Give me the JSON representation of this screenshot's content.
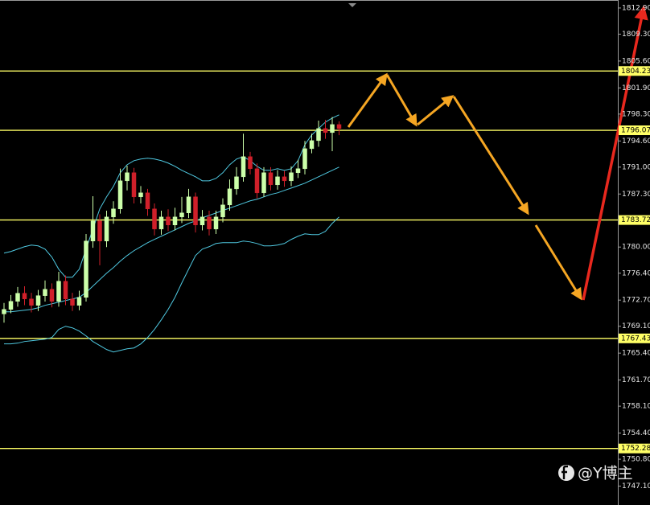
{
  "chart_data": {
    "type": "candlestick",
    "ylim": [
      1744.5,
      1814.0
    ],
    "yticks": [
      {
        "value": 1812.9,
        "label": "1812.90"
      },
      {
        "value": 1809.3,
        "label": "1809.30"
      },
      {
        "value": 1805.6,
        "label": "1805.60"
      },
      {
        "value": 1801.9,
        "label": "1801.90"
      },
      {
        "value": 1798.3,
        "label": "1798.30"
      },
      {
        "value": 1794.6,
        "label": "1794.60"
      },
      {
        "value": 1791,
        "label": "1791.00"
      },
      {
        "value": 1787.3,
        "label": "1787.30"
      },
      {
        "value": 1780,
        "label": "1780.00"
      },
      {
        "value": 1776.4,
        "label": "1776.40"
      },
      {
        "value": 1772.7,
        "label": "1772.70"
      },
      {
        "value": 1769.1,
        "label": "1769.10"
      },
      {
        "value": 1765.4,
        "label": "1765.40"
      },
      {
        "value": 1761.7,
        "label": "1761.70"
      },
      {
        "value": 1758.1,
        "label": "1758.10"
      },
      {
        "value": 1754.4,
        "label": "1754.40"
      },
      {
        "value": 1750.8,
        "label": "1750.80"
      },
      {
        "value": 1747.1,
        "label": "1747.10"
      }
    ],
    "levels": [
      1804.23,
      1796.07,
      1783.72,
      1767.43,
      1752.28
    ],
    "level_color": "#ffff66",
    "up_color": "#ccffaa",
    "down_color": "#d0202a",
    "open": [
      1770.8,
      1771.42,
      1772.53,
      1773.64,
      1772.86,
      1771.98,
      1773.31,
      1774.19,
      1772.53,
      1775.3,
      1772.86,
      1771.98,
      1773.08,
      1780.83,
      1783.59,
      1780.83,
      1784.14,
      1785.25,
      1789.12,
      1790.23,
      1786.91,
      1787.46,
      1785.25,
      1782.48,
      1784.14,
      1783.04,
      1784.14,
      1784.7,
      1786.91,
      1783.04,
      1784.14,
      1782.48,
      1784.14,
      1785.8,
      1788.01,
      1789.67,
      1792.44,
      1790.78,
      1787.46,
      1790.23,
      1788.57,
      1789.67,
      1789.12,
      1790.23,
      1790.78,
      1793.54,
      1794.65,
      1796.31,
      1795.76,
      1796.86
    ],
    "high": [
      1772.3,
      1773.4,
      1774.5,
      1774.6,
      1773.7,
      1774.1,
      1775.4,
      1775.0,
      1776.6,
      1776.1,
      1773.7,
      1774.0,
      1781.8,
      1787.0,
      1784.5,
      1785.0,
      1786.3,
      1790.8,
      1791.2,
      1790.9,
      1788.4,
      1788.0,
      1786.0,
      1785.0,
      1785.2,
      1785.4,
      1786.9,
      1788.0,
      1787.5,
      1785.1,
      1785.0,
      1785.0,
      1786.7,
      1789.3,
      1791.0,
      1795.6,
      1793.1,
      1791.5,
      1791.0,
      1791.0,
      1790.6,
      1790.5,
      1791.1,
      1792.0,
      1794.6,
      1795.6,
      1797.4,
      1797.5,
      1797.9,
      1797.3
    ],
    "low": [
      1769.6,
      1770.9,
      1771.8,
      1772.0,
      1771.0,
      1771.2,
      1772.5,
      1771.7,
      1771.8,
      1772.0,
      1771.2,
      1771.3,
      1772.5,
      1779.9,
      1777.5,
      1780.0,
      1783.2,
      1784.6,
      1787.8,
      1786.0,
      1786.0,
      1784.3,
      1781.6,
      1781.7,
      1782.2,
      1782.3,
      1783.3,
      1784.0,
      1782.0,
      1782.3,
      1781.6,
      1781.8,
      1783.4,
      1785.0,
      1787.2,
      1789.0,
      1790.0,
      1786.7,
      1786.9,
      1787.8,
      1787.9,
      1788.3,
      1788.4,
      1789.5,
      1790.0,
      1792.9,
      1793.8,
      1794.9,
      1793.2,
      1795.4
    ],
    "close": [
      1771.42,
      1772.53,
      1773.64,
      1772.86,
      1771.98,
      1773.31,
      1774.19,
      1772.53,
      1775.3,
      1772.86,
      1771.98,
      1773.08,
      1780.83,
      1783.59,
      1780.83,
      1784.14,
      1785.25,
      1789.12,
      1790.23,
      1786.91,
      1787.46,
      1785.25,
      1782.48,
      1784.14,
      1783.04,
      1784.14,
      1784.7,
      1786.91,
      1783.04,
      1784.14,
      1782.48,
      1784.14,
      1785.8,
      1788.01,
      1789.67,
      1792.44,
      1790.78,
      1787.46,
      1790.23,
      1788.57,
      1789.67,
      1789.12,
      1790.23,
      1790.78,
      1793.54,
      1794.65,
      1796.31,
      1795.76,
      1796.86,
      1796.31
    ],
    "bands": [
      {
        "color": "#4fc8e0",
        "values": [
          1779.17,
          1779.39,
          1779.72,
          1780.05,
          1780.27,
          1780.16,
          1779.72,
          1778.61,
          1776.95,
          1775.85,
          1775.85,
          1776.95,
          1779.72,
          1782.48,
          1785.25,
          1786.91,
          1788.35,
          1790.23,
          1791.33,
          1791.89,
          1792.11,
          1792.22,
          1792.11,
          1791.89,
          1791.56,
          1791.11,
          1790.56,
          1790.12,
          1789.67,
          1789.12,
          1789.12,
          1789.45,
          1790.23,
          1791.33,
          1792.11,
          1792.44,
          1791.89,
          1791.11,
          1790.56,
          1790.56,
          1790.78,
          1790.56,
          1790.78,
          1791.89,
          1794.1,
          1795.42,
          1796.31,
          1797.19,
          1797.75,
          1798.19
        ]
      },
      {
        "color": "#4fc8e0",
        "values": [
          1771.09,
          1771.09,
          1771.2,
          1771.31,
          1771.42,
          1771.64,
          1771.98,
          1772.2,
          1772.42,
          1772.64,
          1772.86,
          1773.08,
          1773.75,
          1774.63,
          1775.52,
          1776.4,
          1777.18,
          1778.06,
          1778.83,
          1779.5,
          1780.05,
          1780.6,
          1781.05,
          1781.49,
          1781.93,
          1782.37,
          1782.82,
          1783.26,
          1783.59,
          1784.03,
          1784.36,
          1784.69,
          1785.03,
          1785.36,
          1785.69,
          1786.02,
          1786.36,
          1786.58,
          1786.91,
          1787.24,
          1787.46,
          1787.79,
          1788.12,
          1788.45,
          1788.79,
          1789.23,
          1789.67,
          1790.12,
          1790.56,
          1791.0
        ]
      },
      {
        "color": "#4fc8e0",
        "values": [
          1766.67,
          1766.67,
          1766.78,
          1767.0,
          1767.11,
          1767.22,
          1767.33,
          1767.55,
          1768.66,
          1769.1,
          1768.88,
          1768.44,
          1767.77,
          1767.0,
          1766.45,
          1765.9,
          1765.56,
          1765.78,
          1766.0,
          1766.11,
          1766.67,
          1767.55,
          1768.66,
          1769.99,
          1771.42,
          1773.08,
          1775.07,
          1776.95,
          1778.83,
          1779.72,
          1780.05,
          1780.49,
          1780.6,
          1780.6,
          1780.6,
          1780.82,
          1780.71,
          1780.49,
          1780.16,
          1780.16,
          1780.27,
          1780.49,
          1781.05,
          1781.49,
          1781.82,
          1781.71,
          1781.71,
          1782.16,
          1783.26,
          1784.14
        ]
      }
    ],
    "watermark": "@Y博主"
  }
}
